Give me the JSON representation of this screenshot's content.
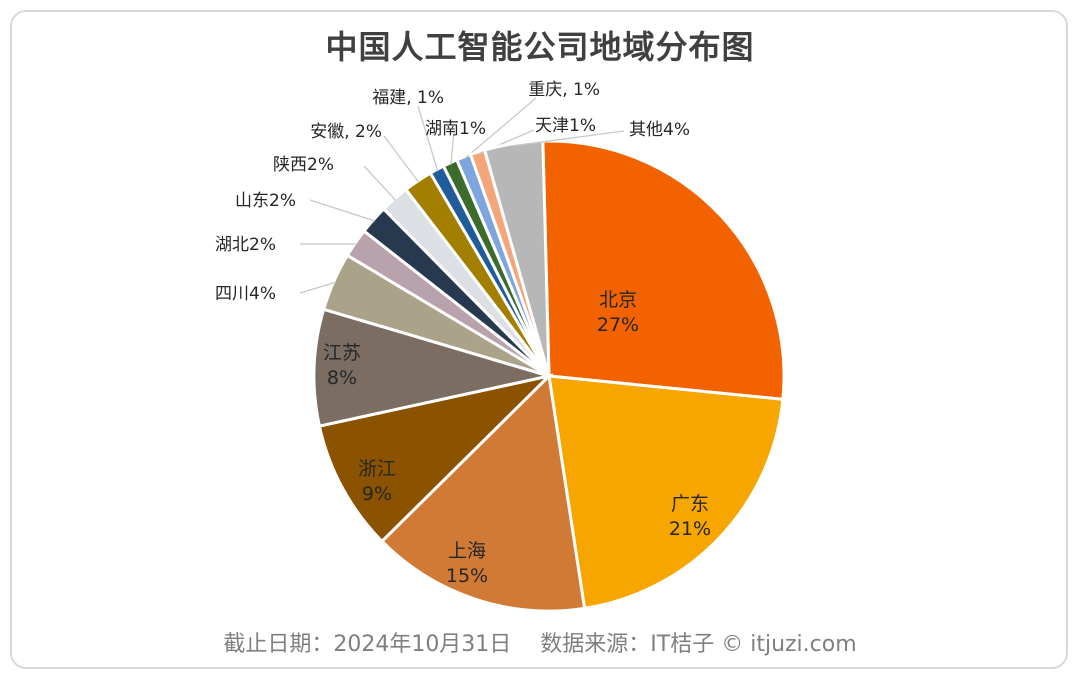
{
  "title": "中国人工智能公司地域分布图",
  "footer": "截止日期：2024年10月31日　 数据来源：IT桔子 © itjuzi.com",
  "chart_data": {
    "type": "pie",
    "title": "中国人工智能公司地域分布图",
    "slices": [
      {
        "name": "北京",
        "value": 27,
        "label": "北京\n27%",
        "color": "#f26300"
      },
      {
        "name": "广东",
        "value": 21,
        "label": "广东\n21%",
        "color": "#f7a600"
      },
      {
        "name": "上海",
        "value": 15,
        "label": "上海\n15%",
        "color": "#d07a35"
      },
      {
        "name": "浙江",
        "value": 9,
        "label": "浙江\n9%",
        "color": "#8b5200"
      },
      {
        "name": "江苏",
        "value": 8,
        "label": "江苏\n8%",
        "color": "#7b6d62"
      },
      {
        "name": "四川",
        "value": 4,
        "label": "四川4%",
        "color": "#aba28a"
      },
      {
        "name": "湖北",
        "value": 2,
        "label": "湖北2%",
        "color": "#b8a3ad"
      },
      {
        "name": "山东",
        "value": 2,
        "label": "山东2%",
        "color": "#27394f"
      },
      {
        "name": "陕西",
        "value": 2,
        "label": "陕西2%",
        "color": "#dcdfe4"
      },
      {
        "name": "安徽",
        "value": 2,
        "label": "安徽, 2%",
        "color": "#a37f00"
      },
      {
        "name": "福建",
        "value": 1,
        "label": "福建, 1%",
        "color": "#1f5c99"
      },
      {
        "name": "湖南",
        "value": 1,
        "label": "湖南1%",
        "color": "#3c6b2c"
      },
      {
        "name": "重庆",
        "value": 1,
        "label": "重庆, 1%",
        "color": "#7ea6de"
      },
      {
        "name": "天津",
        "value": 1,
        "label": "天津1%",
        "color": "#f4a57a"
      },
      {
        "name": "其他",
        "value": 4,
        "label": "其他4%",
        "color": "#b7b7b7"
      }
    ]
  }
}
